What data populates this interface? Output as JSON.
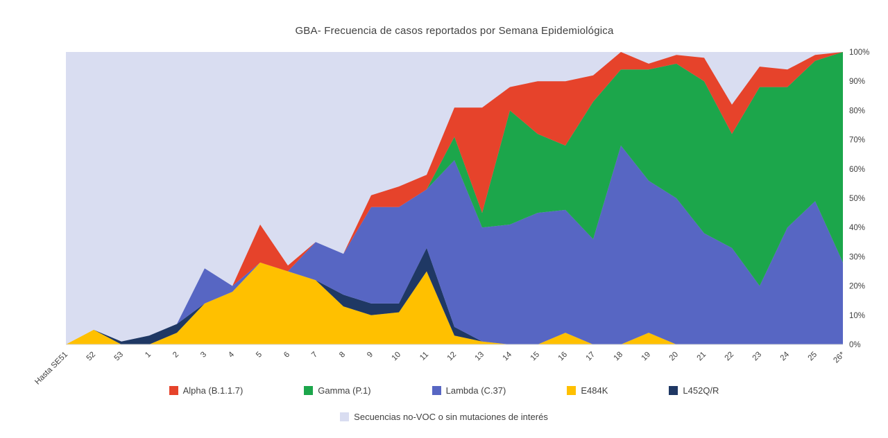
{
  "chart_data": {
    "type": "area",
    "stacking": "percent",
    "title": "GBA- Frecuencia de casos reportados por Semana Epidemiológica",
    "xlabel": "",
    "ylabel": "",
    "ylim": [
      0,
      100
    ],
    "y_ticks": [
      "0%",
      "10%",
      "20%",
      "30%",
      "40%",
      "50%",
      "60%",
      "70%",
      "80%",
      "90%",
      "100%"
    ],
    "y_axis_side": "right",
    "grid": false,
    "legend_position": "bottom",
    "categories": [
      "Hasta SE51",
      "52",
      "53",
      "1",
      "2",
      "3",
      "4",
      "5",
      "6",
      "7",
      "8",
      "9",
      "10",
      "11",
      "12",
      "13",
      "14",
      "15",
      "16",
      "17",
      "18",
      "19",
      "20",
      "21",
      "22",
      "23",
      "24",
      "25",
      "26*"
    ],
    "series": [
      {
        "name": "E484K",
        "color": "#FFC000",
        "values": [
          0,
          5,
          0,
          0,
          4,
          14,
          18,
          28,
          25,
          22,
          13,
          10,
          11,
          25,
          3,
          1,
          0,
          0,
          4,
          0,
          0,
          4,
          0,
          0,
          0,
          0,
          0,
          0,
          0
        ]
      },
      {
        "name": "L452Q/R",
        "color": "#1F3864",
        "values": [
          0,
          0,
          1,
          3,
          3,
          0,
          0,
          0,
          0,
          0,
          4,
          4,
          3,
          8,
          3,
          0,
          0,
          0,
          0,
          0,
          0,
          0,
          0,
          0,
          0,
          0,
          0,
          0,
          0
        ]
      },
      {
        "name": "Lambda (C.37)",
        "color": "#5766C3",
        "values": [
          0,
          0,
          0,
          0,
          0,
          12,
          2,
          0,
          0,
          13,
          14,
          33,
          33,
          20,
          57,
          39,
          41,
          45,
          42,
          36,
          68,
          52,
          50,
          38,
          33,
          20,
          40,
          49,
          28
        ]
      },
      {
        "name": "Gamma (P.1)",
        "color": "#1CA64B",
        "values": [
          0,
          0,
          0,
          0,
          0,
          0,
          0,
          0,
          0,
          0,
          0,
          0,
          0,
          0,
          8,
          5,
          39,
          27,
          22,
          47,
          26,
          38,
          46,
          52,
          39,
          68,
          48,
          48,
          72
        ]
      },
      {
        "name": "Alpha (B.1.1.7)",
        "color": "#E6432B",
        "values": [
          0,
          0,
          0,
          0,
          0,
          0,
          0,
          13,
          2,
          0,
          0,
          4,
          7,
          5,
          10,
          36,
          8,
          18,
          22,
          9,
          6,
          2,
          3,
          8,
          10,
          7,
          6,
          2,
          0
        ]
      }
    ],
    "background_series": {
      "name": "Secuencias no-VOC o sin mutaciones de interés",
      "color": "#D9DDF1"
    }
  },
  "legend": {
    "items": [
      {
        "label": "Alpha (B.1.1.7)",
        "color": "#E6432B"
      },
      {
        "label": "Gamma (P.1)",
        "color": "#1CA64B"
      },
      {
        "label": "Lambda (C.37)",
        "color": "#5766C3"
      },
      {
        "label": "E484K",
        "color": "#FFC000"
      },
      {
        "label": "L452Q/R",
        "color": "#1F3864"
      },
      {
        "label": "Secuencias no-VOC o sin mutaciones de interés",
        "color": "#D9DDF1"
      }
    ]
  }
}
